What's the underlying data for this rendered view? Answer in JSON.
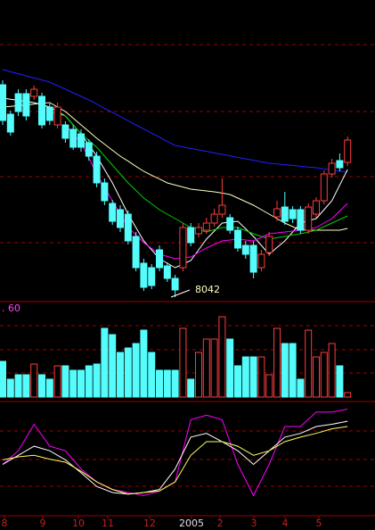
{
  "chart_data": [
    {
      "type": "candlestick",
      "annotation": "8042",
      "up_color": "#ff3c3c",
      "down_color": "#54fcfc",
      "ylim": [
        8000,
        9700
      ],
      "open": [
        9232,
        9067,
        9182,
        9182,
        9167,
        9167,
        9107,
        9007,
        9007,
        8982,
        8957,
        8907,
        8832,
        8682,
        8567,
        8532,
        8507,
        8382,
        8232,
        8207,
        8307,
        8217,
        8147,
        8207,
        8432,
        8397,
        8417,
        8457,
        8507,
        8487,
        8417,
        8332,
        8332,
        8207,
        8292,
        8492,
        8547,
        8532,
        8532,
        8417,
        8507,
        8582,
        8732,
        8807,
        8797
      ],
      "high": [
        9257,
        9087,
        9207,
        9207,
        9227,
        9187,
        9127,
        9132,
        9027,
        9007,
        8982,
        8927,
        8857,
        8707,
        8587,
        8557,
        8527,
        8407,
        8257,
        8227,
        8332,
        8237,
        8167,
        8457,
        8457,
        8457,
        8487,
        8537,
        8707,
        8507,
        8437,
        8357,
        8357,
        8307,
        8407,
        8582,
        8632,
        8552,
        8552,
        8567,
        8602,
        8752,
        8817,
        8847,
        8942
      ],
      "low": [
        9007,
        8947,
        9057,
        9032,
        9147,
        8987,
        9007,
        8987,
        8907,
        8867,
        8857,
        8807,
        8657,
        8557,
        8447,
        8407,
        8337,
        8187,
        8077,
        8087,
        8187,
        8127,
        8042,
        8187,
        8327,
        8377,
        8397,
        8437,
        8487,
        8397,
        8297,
        8257,
        8147,
        8187,
        8272,
        8467,
        8447,
        8457,
        8397,
        8397,
        8487,
        8562,
        8712,
        8747,
        8777
      ],
      "close": [
        9032,
        8967,
        9082,
        9057,
        9207,
        9007,
        9032,
        9107,
        8932,
        8882,
        8882,
        8832,
        8682,
        8582,
        8467,
        8432,
        8357,
        8207,
        8097,
        8107,
        8207,
        8147,
        8082,
        8432,
        8347,
        8432,
        8457,
        8507,
        8557,
        8417,
        8317,
        8282,
        8182,
        8282,
        8382,
        8537,
        8467,
        8482,
        8417,
        8547,
        8582,
        8732,
        8792,
        8767,
        8922
      ],
      "lines": [
        {
          "color": "#2020ff",
          "values": [
            9317,
            9305,
            9294,
            9282,
            9270,
            9259,
            9247,
            9227,
            9207,
            9187,
            9167,
            9147,
            9124,
            9100,
            9077,
            9054,
            9030,
            9007,
            8984,
            8961,
            8938,
            8915,
            8892,
            8884,
            8875,
            8867,
            8859,
            8850,
            8842,
            8834,
            8825,
            8817,
            8809,
            8800,
            8792,
            8788,
            8784,
            8780,
            8775,
            8771,
            8767,
            8761,
            8755,
            8748,
            8742
          ]
        },
        {
          "color": "#ffffc0",
          "values": [
            9107,
            9111,
            9115,
            9119,
            9124,
            9128,
            9132,
            9107,
            9082,
            9045,
            9007,
            8970,
            8932,
            8899,
            8865,
            8832,
            8804,
            8775,
            8747,
            8725,
            8704,
            8682,
            8670,
            8659,
            8647,
            8642,
            8637,
            8632,
            8625,
            8617,
            8597,
            8577,
            8557,
            8532,
            8507,
            8482,
            8457,
            8437,
            8417,
            8417,
            8417,
            8417,
            8417,
            8417,
            8427
          ]
        },
        {
          "color": "#ffffff",
          "values": [
            9157,
            9151,
            9145,
            9138,
            9132,
            9120,
            9107,
            9082,
            9057,
            9007,
            8957,
            8895,
            8832,
            8757,
            8682,
            8595,
            8507,
            8432,
            8357,
            8307,
            8257,
            8232,
            8207,
            8227,
            8247,
            8307,
            8367,
            8412,
            8457,
            8462,
            8467,
            8425,
            8382,
            8332,
            8282,
            8320,
            8357,
            8407,
            8457,
            8470,
            8482,
            8532,
            8582,
            8670,
            8757
          ]
        },
        {
          "color": "#00d000",
          "values": [
            null,
            null,
            null,
            null,
            null,
            null,
            9082,
            9070,
            9057,
            9007,
            8957,
            8920,
            8882,
            8832,
            8782,
            8732,
            8682,
            8640,
            8597,
            8565,
            8532,
            8507,
            8482,
            8457,
            8432,
            8420,
            8407,
            8420,
            8432,
            8432,
            8432,
            8415,
            8397,
            8382,
            8367,
            8375,
            8382,
            8390,
            8397,
            8407,
            8417,
            8437,
            8457,
            8477,
            8497
          ]
        },
        {
          "color": "#ff00ff",
          "values": [
            null,
            null,
            null,
            null,
            null,
            null,
            null,
            null,
            9007,
            8957,
            8907,
            8820,
            8732,
            8657,
            8582,
            8507,
            8432,
            8390,
            8347,
            8315,
            8282,
            8270,
            8257,
            8262,
            8267,
            8292,
            8317,
            8337,
            8357,
            8362,
            8367,
            8362,
            8357,
            8377,
            8397,
            8402,
            8407,
            8412,
            8417,
            8425,
            8432,
            8457,
            8482,
            8525,
            8567
          ]
        }
      ],
      "x_axis_labels": [
        "8",
        "9",
        "10",
        "11",
        "12",
        "2005",
        "2",
        "3",
        "4",
        "5"
      ]
    },
    {
      "type": "bar",
      "label": ". 60",
      "up_color": "#ff3c3c",
      "down_color": "#54fcfc",
      "ylim": [
        0,
        107
      ],
      "values": [
        40,
        20,
        25,
        25,
        37,
        25,
        20,
        35,
        35,
        30,
        30,
        35,
        37,
        77,
        70,
        50,
        55,
        60,
        75,
        50,
        30,
        30,
        30,
        77,
        20,
        50,
        65,
        65,
        90,
        65,
        35,
        45,
        45,
        45,
        25,
        77,
        60,
        60,
        20,
        75,
        45,
        50,
        60,
        35,
        5
      ]
    },
    {
      "type": "line",
      "ylim": [
        -35,
        118
      ],
      "x": [
        0,
        2,
        4,
        6,
        8,
        10,
        12,
        14,
        16,
        18,
        20,
        22,
        24,
        26,
        28,
        30,
        32,
        34,
        36,
        38,
        40,
        42,
        44
      ],
      "series": [
        {
          "color": "#ff00ff",
          "values": [
            35,
            53,
            88,
            59,
            53,
            29,
            12,
            2,
            -2,
            -6,
            0,
            12,
            94,
            100,
            94,
            35,
            -6,
            35,
            85,
            85,
            104,
            104,
            108
          ]
        },
        {
          "color": "#ffffff",
          "values": [
            35,
            47,
            59,
            53,
            41,
            24,
            6,
            -2,
            -4,
            -2,
            2,
            29,
            71,
            76,
            65,
            53,
            35,
            53,
            71,
            76,
            85,
            88,
            92
          ]
        },
        {
          "color": "#ffff60",
          "values": [
            41,
            45,
            47,
            42,
            38,
            26,
            12,
            2,
            -4,
            -2,
            0,
            12,
            47,
            65,
            65,
            59,
            47,
            53,
            65,
            71,
            76,
            82,
            85
          ]
        }
      ]
    }
  ]
}
